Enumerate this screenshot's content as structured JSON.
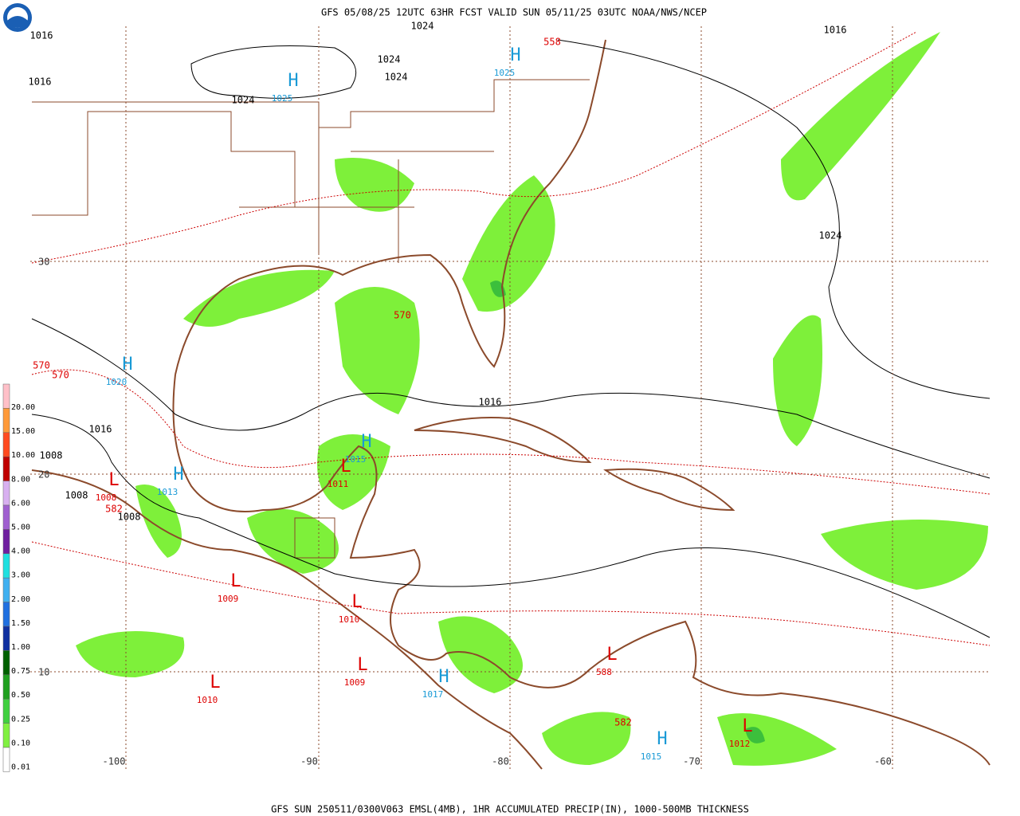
{
  "header": {
    "title": "GFS 05/08/25 12UTC 63HR FCST VALID SUN 05/11/25 03UTC NOAA/NWS/NCEP"
  },
  "footer": {
    "caption": "GFS SUN 250511/0300V063 EMSL(4MB), 1HR ACCUMULATED PRECIP(IN), 1000-500MB THICKNESS"
  },
  "colorbar": {
    "labels": [
      "20.00",
      "15.00",
      "10.00",
      "8.00",
      "6.00",
      "5.00",
      "4.00",
      "3.00",
      "2.00",
      "1.50",
      "1.00",
      "0.75",
      "0.50",
      "0.25",
      "0.10",
      "0.01"
    ]
  },
  "map": {
    "lon_labels": [
      -100,
      -90,
      -80,
      -70,
      -60
    ],
    "lat_labels": [
      30,
      20,
      10
    ],
    "highs": [
      {
        "symbol": "H",
        "value": 1025
      },
      {
        "symbol": "H",
        "value": 1025
      },
      {
        "symbol": "H",
        "value": 1020
      },
      {
        "symbol": "H",
        "value": 1015
      },
      {
        "symbol": "H",
        "value": 1013
      },
      {
        "symbol": "H",
        "value": 1017
      },
      {
        "symbol": "H",
        "value": 1015
      }
    ],
    "lows": [
      {
        "symbol": "L",
        "value": 1011
      },
      {
        "symbol": "L",
        "value": 1008
      },
      {
        "symbol": "L",
        "value": 1009
      },
      {
        "symbol": "L",
        "value": 1010
      },
      {
        "symbol": "L",
        "value": 1009
      },
      {
        "symbol": "L",
        "value": 1010
      },
      {
        "symbol": "L",
        "value": 1012
      },
      {
        "symbol": "L",
        "value": 588
      }
    ],
    "thickness_labels": [
      558,
      570,
      570,
      570,
      582,
      582
    ],
    "isobar_labels": [
      1016,
      1016,
      1024,
      1024,
      1024,
      1024,
      1016,
      1016,
      1008,
      1008,
      1008,
      1016,
      1024
    ]
  }
}
